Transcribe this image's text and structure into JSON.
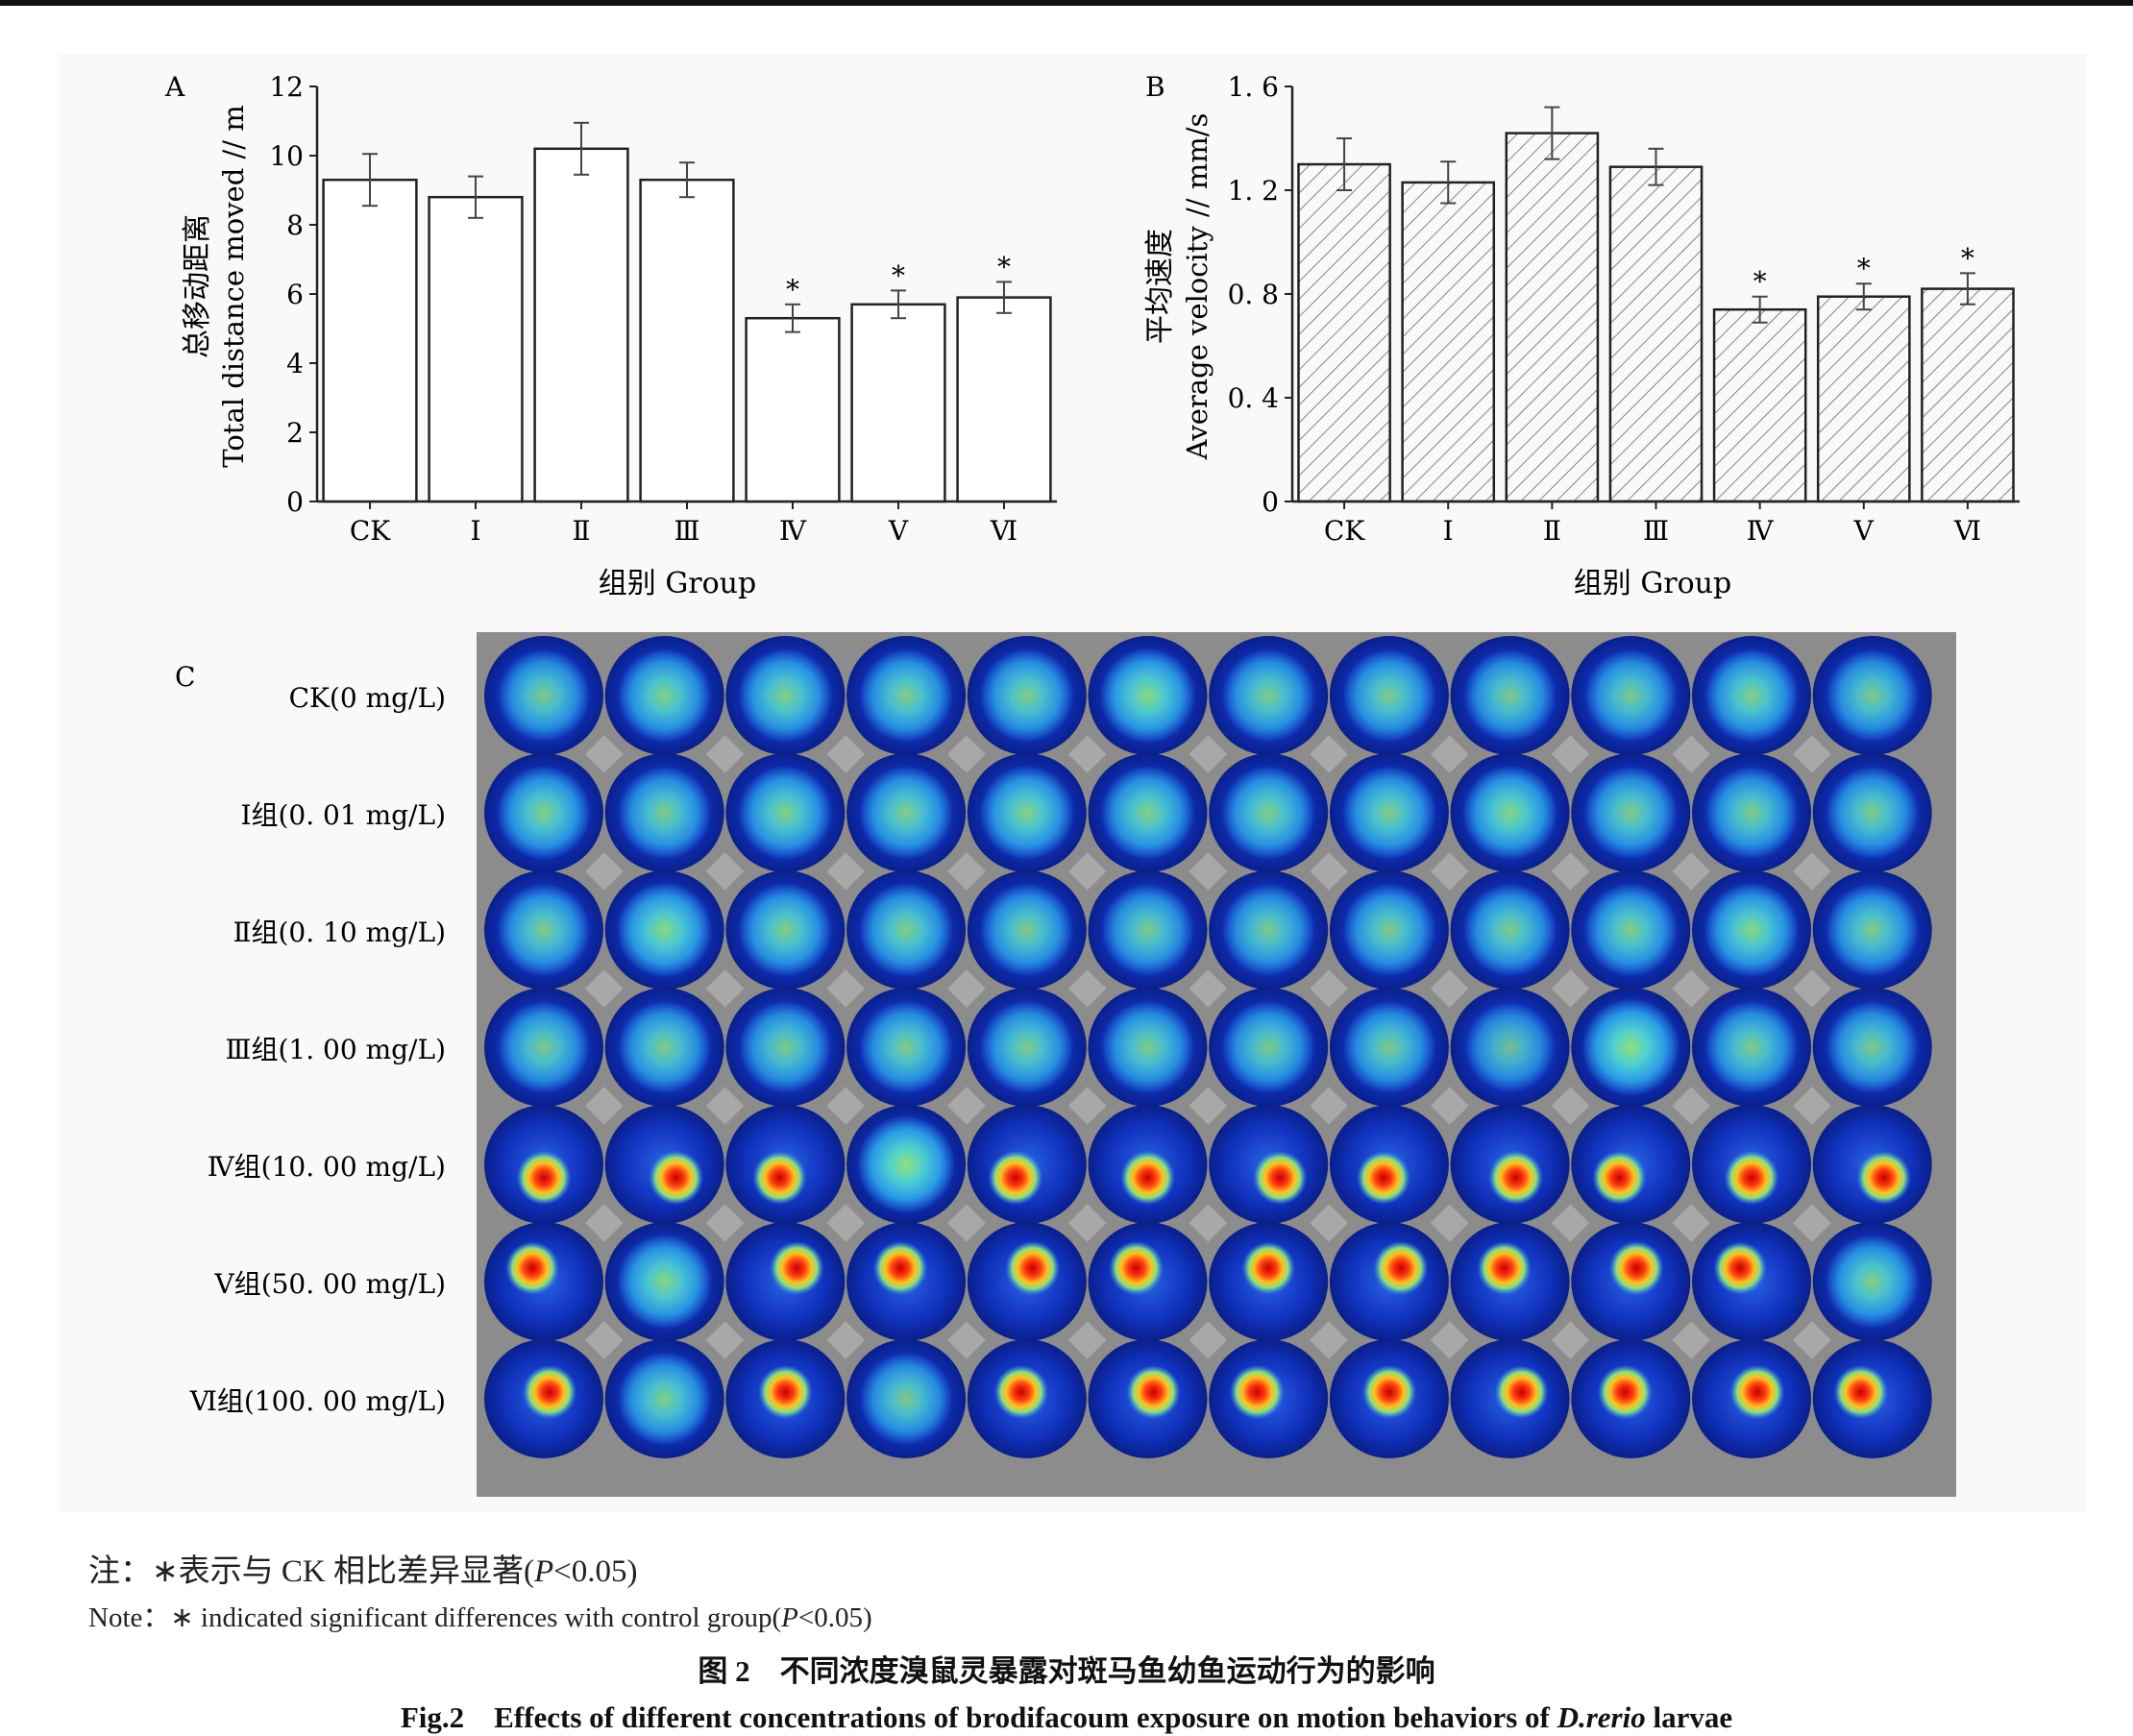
{
  "chart_data": [
    {
      "panel": "A",
      "type": "bar",
      "fill": "none",
      "categories": [
        "CK",
        "Ⅰ",
        "Ⅱ",
        "Ⅲ",
        "Ⅳ",
        "Ⅴ",
        "Ⅵ"
      ],
      "values": [
        9.3,
        8.8,
        10.2,
        9.3,
        5.3,
        5.7,
        5.9
      ],
      "errors": [
        0.75,
        0.6,
        0.75,
        0.5,
        0.4,
        0.4,
        0.45
      ],
      "significant": [
        false,
        false,
        false,
        false,
        true,
        true,
        true
      ],
      "ylabel_cn": "总移动距离",
      "ylabel_en": "Total distance moved // m",
      "xlabel": "组别 Group",
      "ylim": [
        0,
        12
      ],
      "yticks": [
        "0",
        "2",
        "4",
        "6",
        "8",
        "10",
        "12"
      ]
    },
    {
      "panel": "B",
      "type": "bar",
      "fill": "hatched",
      "categories": [
        "CK",
        "Ⅰ",
        "Ⅱ",
        "Ⅲ",
        "Ⅳ",
        "Ⅴ",
        "Ⅵ"
      ],
      "values": [
        1.3,
        1.23,
        1.42,
        1.29,
        0.74,
        0.79,
        0.82
      ],
      "errors": [
        0.1,
        0.08,
        0.1,
        0.07,
        0.05,
        0.05,
        0.06
      ],
      "significant": [
        false,
        false,
        false,
        false,
        true,
        true,
        true
      ],
      "ylabel_cn": "平均速度",
      "ylabel_en": "Average velocity // mm/s",
      "xlabel": "组别 Group",
      "ylim": [
        0,
        1.6
      ],
      "yticks": [
        "0",
        "0. 4",
        "0. 8",
        "1. 2",
        "1. 6"
      ]
    },
    {
      "panel": "C",
      "type": "heatmap",
      "rows": [
        "CK(0 mg/L)",
        "Ⅰ组(0. 01 mg/L)",
        "Ⅱ组(0. 10 mg/L)",
        "Ⅲ组(1. 00 mg/L)",
        "Ⅳ组(10. 00 mg/L)",
        "Ⅴ组(50. 00 mg/L)",
        "Ⅵ组(100. 00 mg/L)"
      ],
      "columns": 12,
      "intensity": [
        [
          0.42,
          0.5,
          0.5,
          0.48,
          0.48,
          0.58,
          0.45,
          0.45,
          0.42,
          0.42,
          0.5,
          0.42
        ],
        [
          0.5,
          0.45,
          0.5,
          0.48,
          0.52,
          0.5,
          0.48,
          0.48,
          0.55,
          0.45,
          0.45,
          0.45
        ],
        [
          0.45,
          0.58,
          0.48,
          0.48,
          0.45,
          0.42,
          0.42,
          0.45,
          0.45,
          0.48,
          0.55,
          0.45
        ],
        [
          0.42,
          0.45,
          0.42,
          0.45,
          0.45,
          0.45,
          0.42,
          0.42,
          0.3,
          0.7,
          0.45,
          0.42
        ],
        [
          0.95,
          0.95,
          0.9,
          0.7,
          0.95,
          0.95,
          0.92,
          0.88,
          0.95,
          0.92,
          0.95,
          0.92
        ],
        [
          0.88,
          0.55,
          0.92,
          0.92,
          0.95,
          0.95,
          0.85,
          0.95,
          0.9,
          0.95,
          0.85,
          0.5
        ],
        [
          0.92,
          0.48,
          0.92,
          0.42,
          0.92,
          0.9,
          0.95,
          0.92,
          0.88,
          0.95,
          0.95,
          0.92
        ]
      ]
    }
  ],
  "panels": {
    "a": {
      "letter": "A",
      "ylabel_cn": "总移动距离",
      "ylabel_en": "Total distance moved // m",
      "xlabel": "组别 Group"
    },
    "b": {
      "letter": "B",
      "ylabel_cn": "平均速度",
      "ylabel_en": "Average velocity // mm/s",
      "xlabel": "组别 Group"
    },
    "c": {
      "letter": "C"
    }
  },
  "significance_marker": "*",
  "notes": {
    "cn": "注：∗表示与 CK 相比差异显著(",
    "cn_p": "P",
    "cn_rest": "<0.05)",
    "en": "Note：∗ indicated significant differences with control group(",
    "en_p": "P",
    "en_rest": "<0.05)"
  },
  "caption": {
    "cn": "图 2　不同浓度溴鼠灵暴露对斑马鱼幼鱼运动行为的影响",
    "en_prefix": "Fig.2　Effects of different concentrations of brodifacoum exposure on motion behaviors of ",
    "en_italic": "D.rerio",
    "en_suffix": " larvae"
  }
}
